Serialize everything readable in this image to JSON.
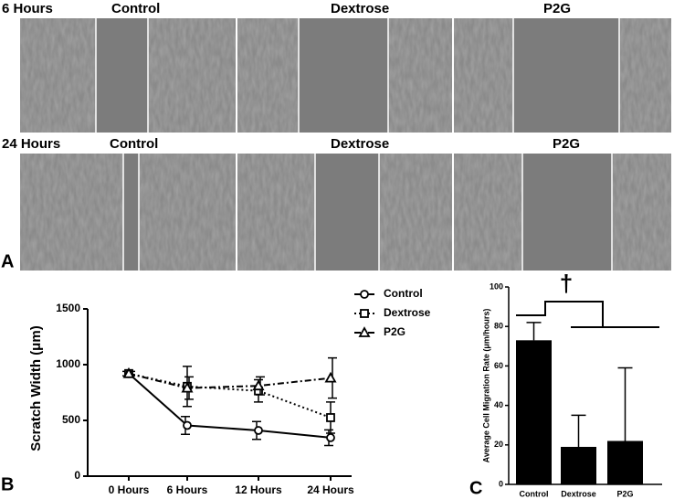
{
  "panel_a": {
    "label": "A",
    "rows": [
      {
        "time": "6 Hours",
        "groups": [
          "Control",
          "Dextrose",
          "P2G"
        ]
      },
      {
        "time": "24 Hours",
        "groups": [
          "Control",
          "Dextrose",
          "P2G"
        ]
      }
    ]
  },
  "chart_data": [
    {
      "type": "line",
      "panel_label": "B",
      "y_label": "Scratch Width (μm)",
      "categories": [
        "0 Hours",
        "6 Hours",
        "12 Hours",
        "24 Hours"
      ],
      "ylim": [
        0,
        1500
      ],
      "yticks": [
        0,
        500,
        1000,
        1500
      ],
      "legend": "top-right",
      "series": [
        {
          "name": "Control",
          "color": "#000000",
          "line_style": "solid",
          "marker": "circle",
          "values": [
            920,
            455,
            410,
            345
          ],
          "errors": [
            20,
            80,
            80,
            70
          ]
        },
        {
          "name": "Dextrose",
          "color": "#000000",
          "line_style": "dotted",
          "marker": "square",
          "values": [
            920,
            805,
            765,
            525
          ],
          "errors": [
            20,
            180,
            100,
            140
          ]
        },
        {
          "name": "P2G",
          "color": "#000000",
          "line_style": "dashdot",
          "marker": "triangle",
          "values": [
            920,
            790,
            810,
            880
          ],
          "errors": [
            20,
            100,
            80,
            180
          ]
        }
      ]
    },
    {
      "type": "bar",
      "panel_label": "C",
      "y_label": "Average Cell Migration Rate (μm/hours)",
      "categories": [
        "Control",
        "Dextrose",
        "P2G"
      ],
      "values": [
        73,
        19,
        22
      ],
      "errors": [
        9,
        16,
        37
      ],
      "color": "#000000",
      "ylim": [
        0,
        100
      ],
      "yticks": [
        0,
        20,
        40,
        60,
        80,
        100
      ],
      "annotation": "†"
    }
  ]
}
